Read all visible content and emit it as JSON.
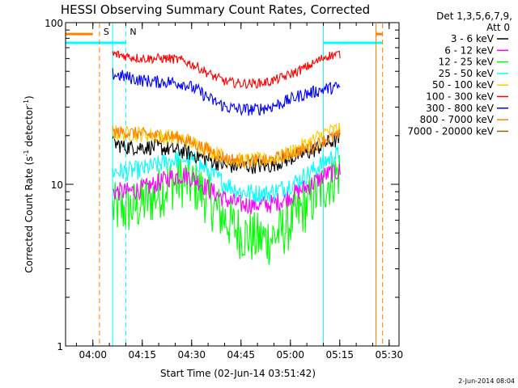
{
  "chart_data": {
    "type": "line",
    "title": "HESSI Observing Summary Count Rates, Corrected",
    "xlabel": "Start Time (02-Jun-14 03:51:42)",
    "ylabel_main": "Corrected Count Rate (s",
    "ylabel_sup1": "-1",
    "ylabel_mid": " detector",
    "ylabel_sup2": "-1",
    "ylabel_end": ")",
    "yscale": "log",
    "ylim": [
      1,
      100
    ],
    "xlim": [
      "03:51:42",
      "05:33:00"
    ],
    "x_ticks": [
      "04:00",
      "04:15",
      "04:30",
      "04:45",
      "05:00",
      "05:15",
      "05:30"
    ],
    "y_ticks": [
      "1",
      "10",
      "100"
    ],
    "legend_header": [
      "Det 1,3,5,6,7,9,",
      "Att 0"
    ],
    "legend_position": "right",
    "footer": "2-Jun-2014 08:04",
    "markers": [
      {
        "label": "S",
        "time": "04:02",
        "color": "#ff8000",
        "style": "dashed"
      },
      {
        "label": "N",
        "time": "04:10",
        "color": "#00ffff",
        "style": "dashed"
      },
      {
        "label": "",
        "time": "04:06",
        "color": "#00ffff",
        "style": "solid"
      },
      {
        "label": "",
        "time": "05:10",
        "color": "#00ffff",
        "style": "solid"
      },
      {
        "label": "",
        "time": "05:26",
        "color": "#ff8000",
        "style": "solid"
      },
      {
        "label": "",
        "time": "05:28",
        "color": "#ff8000",
        "style": "dashed"
      }
    ],
    "bars": [
      {
        "color": "#ff8000",
        "y": 85,
        "from": "03:51:42",
        "to": "04:00"
      },
      {
        "color": "#00ffff",
        "y": 75,
        "from": "03:51:42",
        "to": "04:10"
      },
      {
        "color": "#00ffff",
        "y": 75,
        "from": "05:10",
        "to": "05:28"
      },
      {
        "color": "#ff8000",
        "y": 85,
        "from": "05:26",
        "to": "05:28"
      }
    ],
    "start": "04:06",
    "end": "05:15",
    "series": [
      {
        "name": "3 - 6 keV",
        "color": "#000000",
        "values": [
          18,
          17,
          17,
          17,
          16.5,
          16,
          15,
          14,
          13,
          13,
          13,
          13,
          14,
          15,
          16,
          18,
          19
        ],
        "noise": 0.05
      },
      {
        "name": "6 - 12 keV",
        "color": "#ff00ff",
        "values": [
          9,
          9,
          9.3,
          10,
          11,
          11.5,
          10.5,
          9,
          8,
          7.5,
          7.5,
          7.5,
          8,
          9,
          10,
          11.5,
          12
        ],
        "noise": 0.06
      },
      {
        "name": "12 - 25 keV",
        "color": "#00ff00",
        "values": [
          7,
          7,
          7.5,
          8.5,
          10,
          10.5,
          9.5,
          7.5,
          6,
          5,
          4.6,
          4.6,
          5.2,
          6.5,
          8,
          10,
          12
        ],
        "noise": 0.17
      },
      {
        "name": "25 - 50 keV",
        "color": "#00ffff",
        "values": [
          12,
          12,
          12.3,
          13,
          14,
          14.5,
          13.5,
          11.5,
          10,
          9,
          8.8,
          8.8,
          9.5,
          10.5,
          12,
          14,
          15.5
        ],
        "noise": 0.06
      },
      {
        "name": "50 - 100 keV",
        "color": "#ffcc00",
        "values": [
          21,
          20.5,
          20.5,
          20,
          19.5,
          19,
          17.5,
          16,
          14.5,
          14,
          14,
          14.3,
          15,
          16.5,
          18.5,
          21,
          22
        ],
        "noise": 0.05
      },
      {
        "name": "100 - 300 keV",
        "color": "#ff0000",
        "values": [
          64,
          62,
          60,
          60,
          60,
          58,
          53,
          47,
          43,
          42,
          42,
          43,
          46,
          50,
          55,
          62,
          64
        ],
        "noise": 0.03
      },
      {
        "name": "300 - 800 keV",
        "color": "#0000ff",
        "values": [
          48,
          46,
          44,
          43,
          43,
          42,
          38,
          33,
          30,
          29,
          29,
          30,
          32,
          35,
          37,
          39,
          40
        ],
        "noise": 0.04
      },
      {
        "name": "800 - 7000 keV",
        "color": "#ff8000",
        "values": [
          21,
          21,
          20.5,
          20,
          20,
          19,
          17.5,
          16,
          14.5,
          14,
          14,
          14,
          15,
          16,
          17,
          19,
          20
        ],
        "noise": 0.04
      },
      {
        "name": "7000 - 20000 keV",
        "color": "#996600",
        "values": [],
        "noise": 0
      }
    ]
  }
}
